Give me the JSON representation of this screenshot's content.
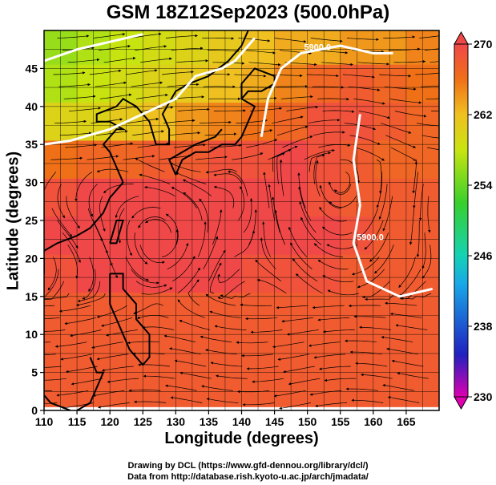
{
  "title": "GSM 18Z12Sep2023 (500.0hPa)",
  "xlabel": "Longitude (degrees)",
  "ylabel": "Latitude (degrees)",
  "credits": {
    "line1": "Drawing by DCL (https://www.gfd-dennou.org/library/dcl/)",
    "line2": "Data from http://database.rish.kyoto-u.ac.jp/arch/jmadata/"
  },
  "chart_data": {
    "type": "heatmap",
    "subtype": "map with streamlines and contours",
    "x_ticks": [
      110,
      115,
      120,
      125,
      130,
      135,
      140,
      145,
      150,
      155,
      160,
      165
    ],
    "y_ticks": [
      0,
      5,
      10,
      15,
      20,
      25,
      30,
      35,
      40,
      45
    ],
    "xlim": [
      110,
      170
    ],
    "ylim": [
      0,
      50
    ],
    "grid": true,
    "colorbar": {
      "min": 230,
      "max": 270,
      "ticks": [
        270,
        262,
        254,
        246,
        238,
        230
      ],
      "colors": [
        "#e000b0",
        "#1c1cc8",
        "#1aa0e8",
        "#14d2b4",
        "#3ad42a",
        "#a8e418",
        "#f0c828",
        "#f08c1e",
        "#f0501e",
        "#f04a4a"
      ]
    },
    "contours": [
      {
        "label": "5900.0",
        "points": [
          [
            143,
            36
          ],
          [
            144,
            41
          ],
          [
            146,
            45
          ],
          [
            149,
            47
          ],
          [
            155,
            48
          ],
          [
            160,
            47
          ],
          [
            163,
            47
          ]
        ]
      },
      {
        "label": "5900.0",
        "points": [
          [
            158,
            39
          ],
          [
            157,
            33
          ],
          [
            158,
            27
          ],
          [
            157,
            22
          ],
          [
            159,
            17
          ],
          [
            164,
            15
          ],
          [
            169,
            16
          ]
        ]
      },
      {
        "label": "",
        "points": [
          [
            110,
            46
          ],
          [
            115,
            47.5
          ],
          [
            120,
            48.5
          ],
          [
            125,
            49.5
          ]
        ]
      },
      {
        "label": "",
        "points": [
          [
            110,
            35
          ],
          [
            114,
            35.5
          ],
          [
            120,
            37
          ],
          [
            125,
            39
          ],
          [
            130,
            41
          ],
          [
            133,
            44
          ],
          [
            137,
            45
          ],
          [
            139,
            46
          ],
          [
            142,
            49
          ]
        ]
      }
    ],
    "colorfield": [
      {
        "lat": 48,
        "values": [
          256,
          257,
          258,
          259,
          260,
          261,
          262,
          263,
          263,
          264,
          264,
          265
        ]
      },
      {
        "lat": 43,
        "values": [
          257,
          258,
          259,
          260,
          261,
          262,
          263,
          265,
          267,
          268,
          267,
          266
        ]
      },
      {
        "lat": 38,
        "values": [
          260,
          260,
          261,
          262,
          264,
          265,
          266,
          267,
          269,
          269,
          268,
          267
        ]
      },
      {
        "lat": 33,
        "values": [
          266,
          267,
          267,
          268,
          268,
          269,
          269,
          270,
          269,
          268,
          267,
          267
        ]
      },
      {
        "lat": 28,
        "values": [
          269,
          270,
          270,
          270,
          270,
          270,
          270,
          270,
          269,
          268,
          268,
          268
        ]
      },
      {
        "lat": 23,
        "values": [
          270,
          270,
          270,
          270,
          270,
          270,
          270,
          270,
          270,
          269,
          268,
          268
        ]
      },
      {
        "lat": 18,
        "values": [
          269,
          270,
          270,
          270,
          270,
          270,
          269,
          269,
          269,
          268,
          268,
          268
        ]
      },
      {
        "lat": 13,
        "values": [
          268,
          268,
          268,
          268,
          268,
          268,
          268,
          268,
          268,
          268,
          268,
          268
        ]
      },
      {
        "lat": 8,
        "values": [
          268,
          268,
          268,
          268,
          268,
          268,
          268,
          268,
          268,
          268,
          268,
          268
        ]
      },
      {
        "lat": 3,
        "values": [
          268,
          268,
          268,
          268,
          268,
          268,
          268,
          268,
          268,
          268,
          268,
          268
        ]
      }
    ]
  }
}
